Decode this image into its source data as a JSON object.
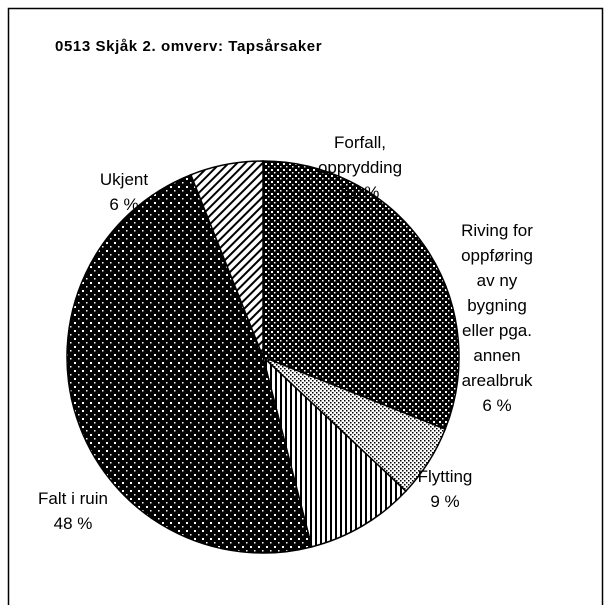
{
  "chart_data": {
    "type": "pie",
    "title": "0513 Skjåk 2. omverv: Tapsårsaker",
    "categories": [
      "Forfall, opprydding",
      "Riving for oppføring av ny bygning eller pga. annen arealbruk",
      "Flytting",
      "Falt i ruin",
      "Ukjent"
    ],
    "values": [
      31,
      6,
      9,
      48,
      6
    ],
    "value_labels": [
      "31 %",
      "6 %",
      "9 %",
      "48 %",
      "6 %"
    ]
  }
}
